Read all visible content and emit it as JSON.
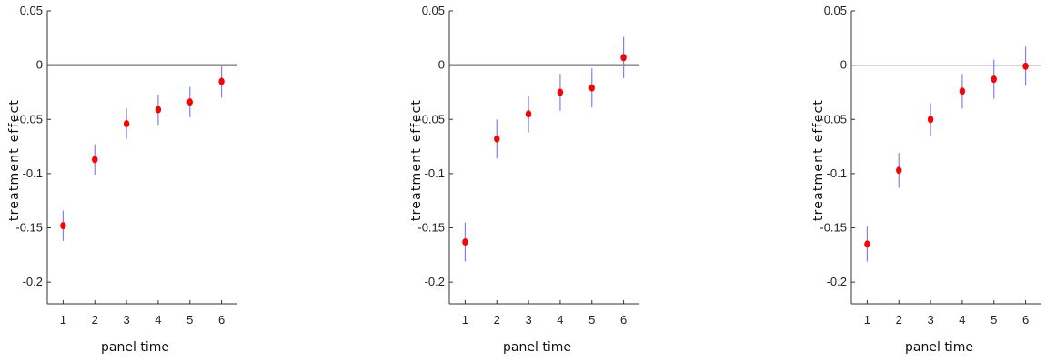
{
  "chart_data": [
    {
      "type": "scatter",
      "xlabel": "panel time",
      "ylabel": "treatment effect",
      "xticks": [
        1,
        2,
        3,
        4,
        5,
        6
      ],
      "yticks": [
        0.05,
        0,
        -0.05,
        -0.1,
        -0.15,
        -0.2
      ],
      "ytick_labels": [
        "0.05",
        "0",
        "-0.05",
        "-0.1",
        "-0.15",
        "-0.2"
      ],
      "xlim": [
        0.5,
        6.5
      ],
      "ylim": [
        -0.22,
        0.05
      ],
      "zero_line": true,
      "grid": false,
      "series": [
        {
          "x": [
            1,
            2,
            3,
            4,
            5,
            6
          ],
          "values": [
            -0.148,
            -0.087,
            -0.054,
            -0.041,
            -0.034,
            -0.015
          ],
          "ci_low": [
            -0.162,
            -0.101,
            -0.068,
            -0.055,
            -0.048,
            -0.03
          ],
          "ci_high": [
            -0.134,
            -0.073,
            -0.04,
            -0.027,
            -0.02,
            0.0
          ]
        }
      ]
    },
    {
      "type": "scatter",
      "xlabel": "panel time",
      "ylabel": "treatment effect",
      "xticks": [
        1,
        2,
        3,
        4,
        5,
        6
      ],
      "yticks": [
        0.05,
        0,
        -0.05,
        -0.1,
        -0.15,
        -0.2
      ],
      "ytick_labels": [
        "0.05",
        "0",
        "-0.05",
        "-0.1",
        "-0.15",
        "-0.2"
      ],
      "xlim": [
        0.5,
        6.5
      ],
      "ylim": [
        -0.22,
        0.05
      ],
      "zero_line": true,
      "grid": false,
      "series": [
        {
          "x": [
            1,
            2,
            3,
            4,
            5,
            6
          ],
          "values": [
            -0.163,
            -0.068,
            -0.045,
            -0.025,
            -0.021,
            0.007
          ],
          "ci_low": [
            -0.181,
            -0.086,
            -0.062,
            -0.042,
            -0.039,
            -0.012
          ],
          "ci_high": [
            -0.145,
            -0.05,
            -0.028,
            -0.008,
            -0.003,
            0.026
          ]
        }
      ]
    },
    {
      "type": "scatter",
      "xlabel": "panel time",
      "ylabel": "treatment effect",
      "xticks": [
        1,
        2,
        3,
        4,
        5,
        6
      ],
      "yticks": [
        0.05,
        0,
        -0.05,
        -0.1,
        -0.15,
        -0.2
      ],
      "ytick_labels": [
        "0.05",
        "0",
        "-0.05",
        "-0.1",
        "-0.15",
        "-0.2"
      ],
      "xlim": [
        0.5,
        6.5
      ],
      "ylim": [
        -0.22,
        0.05
      ],
      "zero_line": true,
      "grid": false,
      "series": [
        {
          "x": [
            1,
            2,
            3,
            4,
            5,
            6
          ],
          "values": [
            -0.165,
            -0.097,
            -0.05,
            -0.024,
            -0.013,
            -0.001
          ],
          "ci_low": [
            -0.181,
            -0.113,
            -0.065,
            -0.04,
            -0.031,
            -0.019
          ],
          "ci_high": [
            -0.149,
            -0.081,
            -0.035,
            -0.008,
            0.005,
            0.017
          ]
        }
      ]
    }
  ],
  "colors": {
    "point": "#ff0000",
    "errorbar": "#8080ee",
    "axis": "#333333",
    "zero_line": "#555555"
  }
}
